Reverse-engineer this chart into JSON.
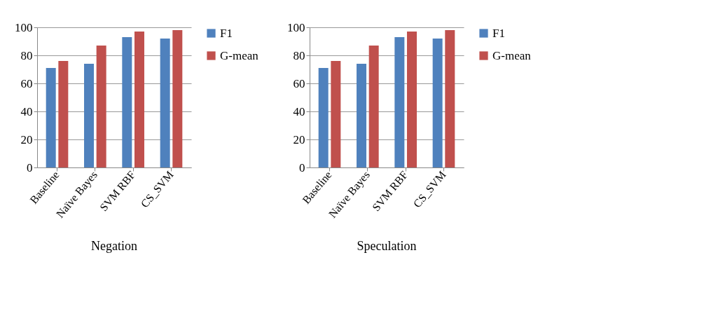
{
  "chart_data": [
    {
      "type": "bar",
      "title": "Negation",
      "categories": [
        "Baseline",
        "Naïve Bayes",
        "SVM RBF",
        "CS_SVM"
      ],
      "series": [
        {
          "name": "F1",
          "color": "#4f81bd",
          "values": [
            71,
            74,
            93,
            92
          ]
        },
        {
          "name": "G-mean",
          "color": "#c0504d",
          "values": [
            76,
            87,
            97,
            98
          ]
        }
      ],
      "ylim": [
        0,
        100
      ],
      "yticks": [
        0,
        20,
        40,
        60,
        80,
        100
      ],
      "grid": "y",
      "legend": "right"
    },
    {
      "type": "bar",
      "title": "Speculation",
      "categories": [
        "Baseline",
        "Naïve Bayes",
        "SVM RBF",
        "CS_SVM"
      ],
      "series": [
        {
          "name": "F1",
          "color": "#4f81bd",
          "values": [
            71,
            74,
            93,
            92
          ]
        },
        {
          "name": "G-mean",
          "color": "#c0504d",
          "values": [
            76,
            87,
            97,
            98
          ]
        }
      ],
      "ylim": [
        0,
        100
      ],
      "yticks": [
        0,
        20,
        40,
        60,
        80,
        100
      ],
      "grid": "y",
      "legend": "right"
    }
  ]
}
